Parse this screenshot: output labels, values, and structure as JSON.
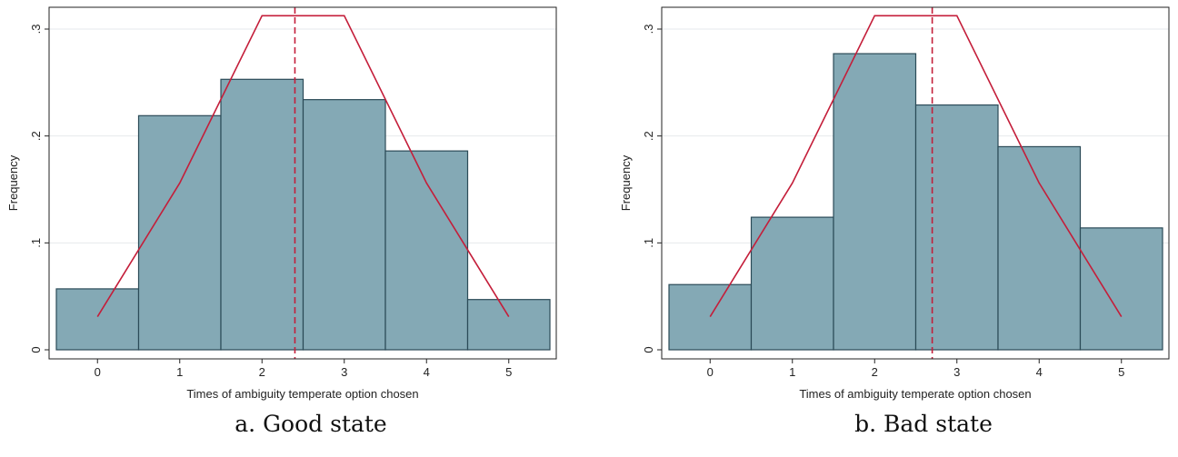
{
  "chart_data": [
    {
      "type": "bar",
      "id": "a",
      "caption": "a. Good state",
      "categories": [
        "0",
        "1",
        "2",
        "3",
        "4",
        "5"
      ],
      "x": [
        0,
        1,
        2,
        3,
        4,
        5
      ],
      "values": [
        0.057,
        0.219,
        0.253,
        0.234,
        0.186,
        0.047
      ],
      "xlabel": "Times of ambiguity temperate option chosen",
      "ylabel": "Frequency",
      "xlim": [
        -0.5,
        5.5
      ],
      "ylim": [
        0,
        0.32
      ],
      "yticks": [
        0,
        0.1,
        0.2,
        0.3
      ],
      "ytick_labels": [
        "0",
        ".1",
        ".2",
        ".3"
      ],
      "overlay_line": {
        "x": [
          0,
          1,
          2,
          3,
          4,
          5
        ],
        "y": [
          0.031,
          0.156,
          0.3125,
          0.3125,
          0.156,
          0.031
        ]
      },
      "mean_line_x": 2.4,
      "grid": "horizontal",
      "colors": {
        "bar_fill": "#84a9b5",
        "bar_edge": "#2b4a57",
        "overlay": "#c41e3a"
      }
    },
    {
      "type": "bar",
      "id": "b",
      "caption": "b. Bad state",
      "categories": [
        "0",
        "1",
        "2",
        "3",
        "4",
        "5"
      ],
      "x": [
        0,
        1,
        2,
        3,
        4,
        5
      ],
      "values": [
        0.061,
        0.124,
        0.277,
        0.229,
        0.19,
        0.114
      ],
      "xlabel": "Times of ambiguity temperate option chosen",
      "ylabel": "Frequency",
      "xlim": [
        -0.5,
        5.5
      ],
      "ylim": [
        0,
        0.32
      ],
      "yticks": [
        0,
        0.1,
        0.2,
        0.3
      ],
      "ytick_labels": [
        "0",
        ".1",
        ".2",
        ".3"
      ],
      "overlay_line": {
        "x": [
          0,
          1,
          2,
          3,
          4,
          5
        ],
        "y": [
          0.031,
          0.156,
          0.3125,
          0.3125,
          0.156,
          0.031
        ]
      },
      "mean_line_x": 2.7,
      "grid": "horizontal",
      "colors": {
        "bar_fill": "#84a9b5",
        "bar_edge": "#2b4a57",
        "overlay": "#c41e3a"
      }
    }
  ]
}
